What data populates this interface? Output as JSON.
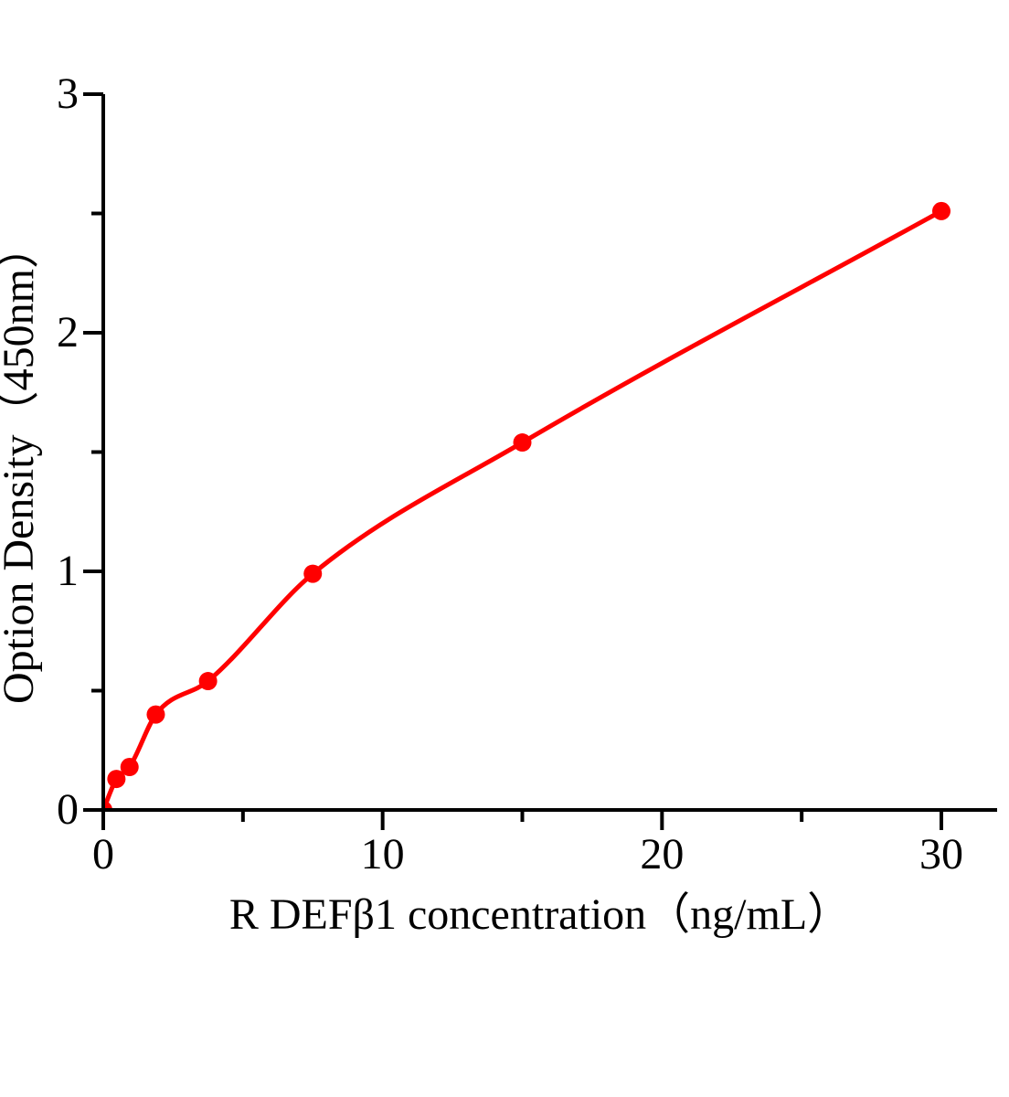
{
  "figure": {
    "background": "#ffffff"
  },
  "chart_data": {
    "type": "scatter",
    "subtype": "standard-curve-with-fitted-line",
    "xlabel": "R DEFβ1 concentration（ng/mL）",
    "ylabel": "Option Density（450nm）",
    "points": [
      {
        "x": 0,
        "y": 0
      },
      {
        "x": 0.47,
        "y": 0.13
      },
      {
        "x": 0.94,
        "y": 0.18
      },
      {
        "x": 1.88,
        "y": 0.4
      },
      {
        "x": 3.75,
        "y": 0.54
      },
      {
        "x": 7.5,
        "y": 0.99
      },
      {
        "x": 15,
        "y": 1.54
      },
      {
        "x": 30,
        "y": 2.51
      }
    ],
    "curve": "smooth monotone curve through all points, starting at origin",
    "xlim": [
      0,
      32
    ],
    "ylim": [
      0,
      3
    ],
    "x_major_ticks": [
      0,
      10,
      20,
      30
    ],
    "x_minor_ticks": [
      5,
      15,
      25
    ],
    "y_major_ticks": [
      0,
      1,
      2,
      3
    ],
    "y_minor_ticks": [
      0.5,
      1.5,
      2.5
    ],
    "tick_direction": "out",
    "grid": false,
    "legend": false,
    "colors": {
      "line": "#ff0000",
      "marker": "#ff0000",
      "axis": "#000000",
      "text": "#000000"
    }
  }
}
